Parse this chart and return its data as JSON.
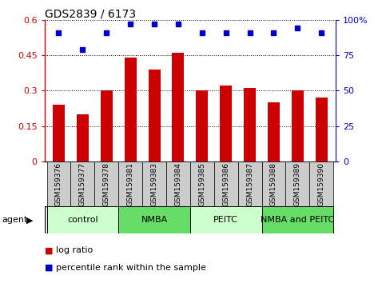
{
  "title": "GDS2839 / 6173",
  "samples": [
    "GSM159376",
    "GSM159377",
    "GSM159378",
    "GSM159381",
    "GSM159383",
    "GSM159384",
    "GSM159385",
    "GSM159386",
    "GSM159387",
    "GSM159388",
    "GSM159389",
    "GSM159390"
  ],
  "log_ratio": [
    0.24,
    0.2,
    0.3,
    0.44,
    0.39,
    0.46,
    0.3,
    0.32,
    0.31,
    0.25,
    0.3,
    0.27
  ],
  "pct_rank": [
    91,
    79,
    91,
    97,
    97,
    97,
    91,
    91,
    91,
    91,
    94,
    91
  ],
  "bar_color": "#cc0000",
  "dot_color": "#0000cc",
  "ylim_left": [
    0,
    0.6
  ],
  "ylim_right": [
    0,
    100
  ],
  "yticks_left": [
    0,
    0.15,
    0.3,
    0.45,
    0.6
  ],
  "yticks_right": [
    0,
    25,
    50,
    75,
    100
  ],
  "ytick_labels_left": [
    "0",
    "0.15",
    "0.3",
    "0.45",
    "0.6"
  ],
  "ytick_labels_right": [
    "0",
    "25",
    "50",
    "75",
    "100%"
  ],
  "groups": [
    {
      "label": "control",
      "start": 0,
      "end": 3,
      "color": "#ccffcc"
    },
    {
      "label": "NMBA",
      "start": 3,
      "end": 6,
      "color": "#66dd66"
    },
    {
      "label": "PEITC",
      "start": 6,
      "end": 9,
      "color": "#ccffcc"
    },
    {
      "label": "NMBA and PEITC",
      "start": 9,
      "end": 12,
      "color": "#66dd66"
    }
  ],
  "agent_label": "agent",
  "legend_bar_label": "log ratio",
  "legend_dot_label": "percentile rank within the sample",
  "tick_area_color": "#cccccc",
  "bar_width": 0.5
}
